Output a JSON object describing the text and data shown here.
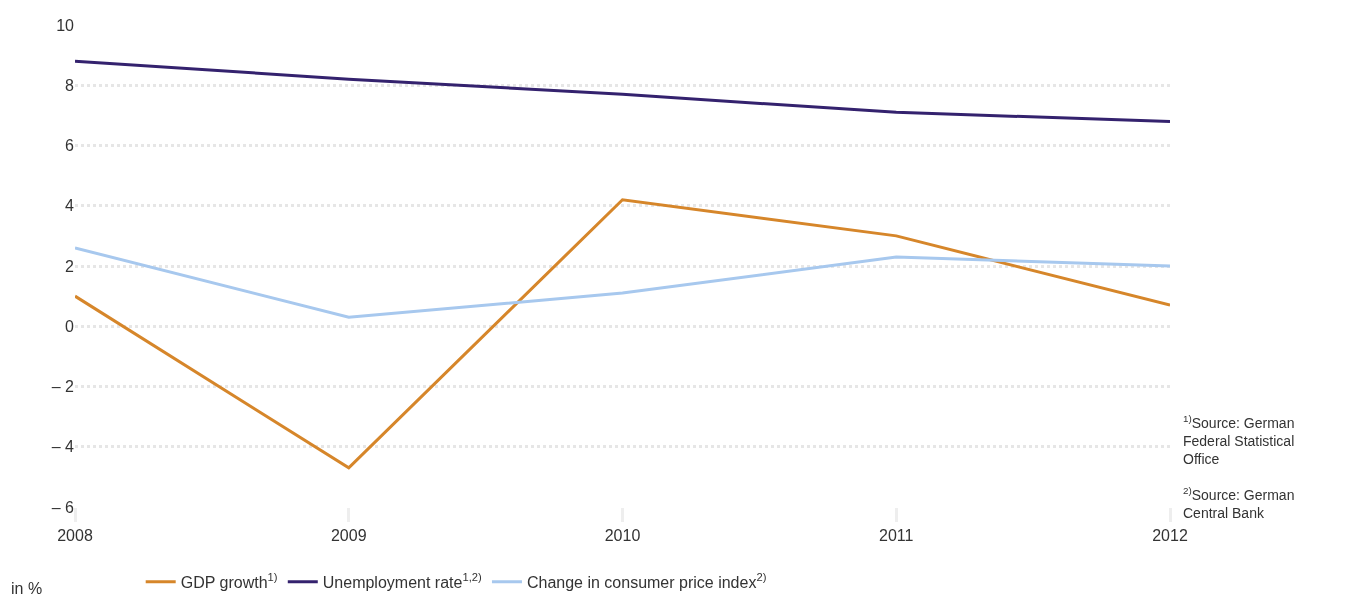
{
  "chart_data": {
    "type": "line",
    "ylabel": "in %",
    "categories": [
      "2008",
      "2009",
      "2010",
      "2011",
      "2012"
    ],
    "series": [
      {
        "name": "GDP growth$^{1)}$",
        "color": "#d6862a",
        "values": [
          1.0,
          -4.7,
          4.2,
          3.0,
          0.7
        ]
      },
      {
        "name": "Unemployment rate$^{1,2)}$",
        "color": "#34226e",
        "values": [
          8.8,
          8.2,
          7.7,
          7.1,
          6.8
        ]
      },
      {
        "name": "Change in consumer price index$^{2)}$",
        "color": "#a7c8ee",
        "values": [
          2.6,
          0.3,
          1.1,
          2.3,
          2.0
        ]
      }
    ],
    "ylim": [
      -6,
      10
    ],
    "yticks": [
      {
        "value": -6,
        "label": "– 6"
      },
      {
        "value": -4,
        "label": "– 4"
      },
      {
        "value": -2,
        "label": "– 2"
      },
      0,
      2,
      4,
      6,
      8,
      10
    ],
    "grid": "y",
    "legend": "bottom",
    "marker": "none",
    "line_style": "solid",
    "annotations": [
      "$^{1)}$Source: German Federal Statistical Office",
      "$^{2)}$Source: German Central Bank"
    ]
  }
}
